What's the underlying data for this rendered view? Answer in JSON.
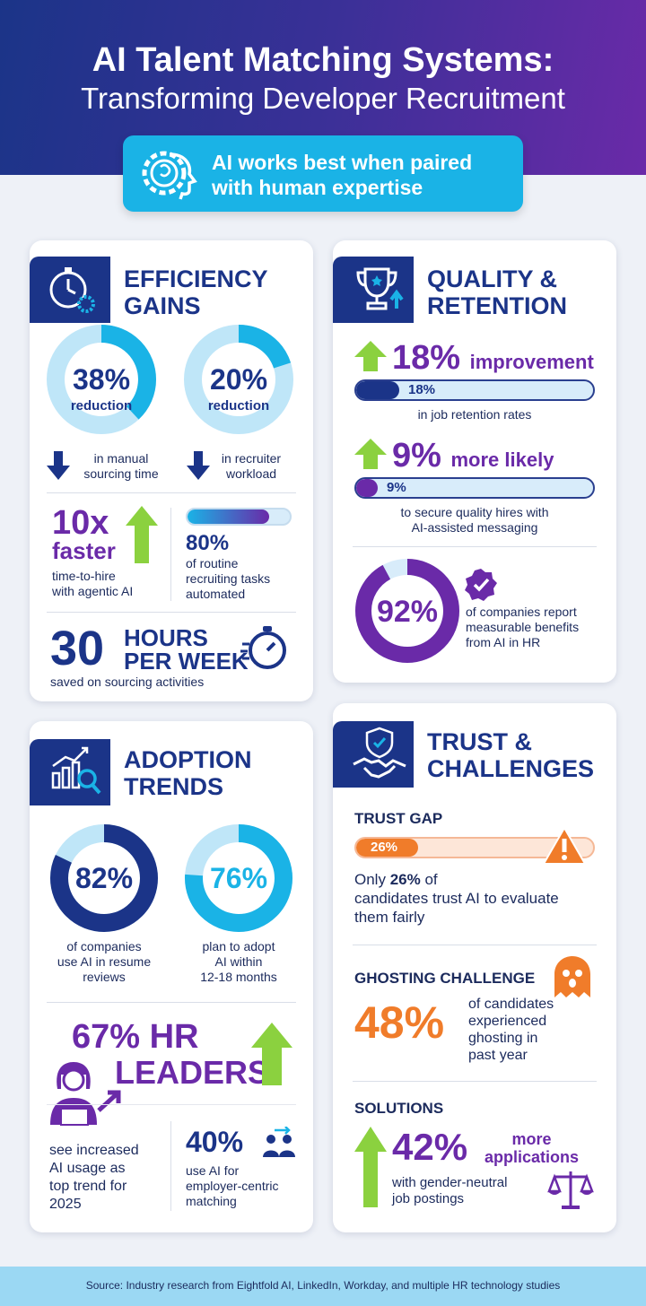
{
  "header": {
    "title_line1": "AI Talent Matching Systems:",
    "title_line2": "Transforming Developer Recruitment",
    "banner_line1": "AI works best when paired",
    "banner_line2": "with human expertise"
  },
  "colors": {
    "navy": "#1b3488",
    "purple": "#6a2aa8",
    "cyan": "#1ab3e6",
    "green": "#8bd13f",
    "orange": "#f07c2a"
  },
  "efficiency": {
    "title_line1": "EFFICIENCY",
    "title_line2": "GAINS",
    "donut1": {
      "value_label": "38%",
      "sub": "reduction",
      "fraction": 0.38,
      "caption_line1": "in manual",
      "caption_line2": "sourcing time"
    },
    "donut2": {
      "value_label": "20%",
      "sub": "reduction",
      "fraction": 0.2,
      "caption_line1": "in recruiter",
      "caption_line2": "workload"
    },
    "faster": {
      "big": "10x",
      "word": "faster",
      "caption_line1": "time-to-hire",
      "caption_line2": "with agentic AI"
    },
    "automated": {
      "value_label": "80%",
      "fraction": 0.8,
      "caption_line1": "of routine",
      "caption_line2": "recruiting tasks",
      "caption_line3": "automated"
    },
    "hours": {
      "big": "30",
      "line1": "HOURS",
      "line2": "PER WEEK",
      "caption": "saved on sourcing activities"
    }
  },
  "quality": {
    "title_line1": "QUALITY &",
    "title_line2": "RETENTION",
    "stat1": {
      "big": "18%",
      "word": "improvement",
      "bar_label": "18%",
      "fraction": 0.18,
      "caption": "in job retention rates"
    },
    "stat2": {
      "big": "9%",
      "word": "more likely",
      "bar_label": "9%",
      "fraction": 0.09,
      "caption_line1": "to secure quality hires with",
      "caption_line2": "AI-assisted messaging"
    },
    "stat3": {
      "value_label": "92%",
      "fraction": 0.92,
      "caption_line1": "of companies report",
      "caption_line2": "measurable benefits",
      "caption_line3": "from AI in HR"
    }
  },
  "adoption": {
    "title_line1": "ADOPTION",
    "title_line2": "TRENDS",
    "donut1": {
      "value_label": "82%",
      "fraction": 0.82,
      "caption_line1": "of companies",
      "caption_line2": "use AI in resume",
      "caption_line3": "reviews"
    },
    "donut2": {
      "value_label": "76%",
      "fraction": 0.76,
      "caption_line1": "plan to adopt",
      "caption_line2": "AI within",
      "caption_line3": "12-18 months"
    },
    "hr": {
      "line1": "67% HR",
      "line2": "LEADERS",
      "caption_line1": "see increased",
      "caption_line2": "AI usage as",
      "caption_line3": "top trend for",
      "caption_line4": "2025"
    },
    "employer": {
      "value_label": "40%",
      "caption_line1": "use AI for",
      "caption_line2": "employer-centric",
      "caption_line3": "matching"
    }
  },
  "trust": {
    "title_line1": "TRUST &",
    "title_line2": "CHALLENGES",
    "gap": {
      "heading": "TRUST GAP",
      "bar_label": "26%",
      "fraction": 0.26,
      "text_pre": "Only ",
      "text_bold": "26%",
      "text_post": " of",
      "line2": "candidates trust AI to evaluate",
      "line3": "them fairly"
    },
    "ghosting": {
      "heading": "GHOSTING CHALLENGE",
      "big": "48%",
      "caption_line1": "of candidates",
      "caption_line2": "experienced",
      "caption_line3": "ghosting in",
      "caption_line4": "past year"
    },
    "solutions": {
      "heading": "SOLUTIONS",
      "big": "42%",
      "word_line1": "more",
      "word_line2": "applications",
      "caption_line1": "with gender-neutral",
      "caption_line2": "job postings"
    }
  },
  "footer": {
    "source": "Source: Industry research from Eightfold AI, LinkedIn, Workday, and multiple HR technology studies"
  }
}
